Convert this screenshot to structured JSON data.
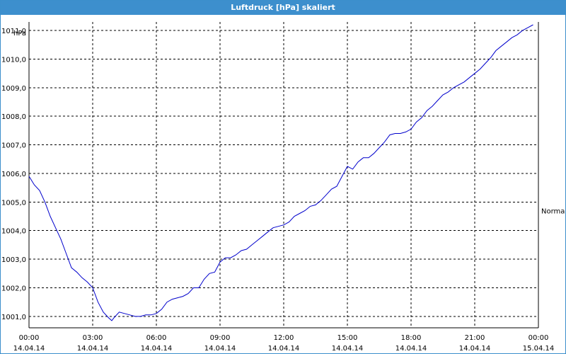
{
  "window": {
    "title": "Luftdruck [hPa] skaliert"
  },
  "colors": {
    "line": "#0000cc",
    "grid": "#000000",
    "titlebar": "#3d8fcd"
  },
  "chart_data": {
    "type": "line",
    "title": "Luftdruck [hPa] skaliert",
    "ylabel": "hPa",
    "xlabel": "",
    "ylim": [
      1000.6,
      1011.3
    ],
    "xlim": [
      0,
      24
    ],
    "grid": true,
    "yticks": [
      {
        "value": 1001,
        "label": "1001,0"
      },
      {
        "value": 1002,
        "label": "1002,0"
      },
      {
        "value": 1003,
        "label": "1003,0"
      },
      {
        "value": 1004,
        "label": "1004,0"
      },
      {
        "value": 1005,
        "label": "1005,0"
      },
      {
        "value": 1006,
        "label": "1006,0"
      },
      {
        "value": 1007,
        "label": "1007,0"
      },
      {
        "value": 1008,
        "label": "1008,0"
      },
      {
        "value": 1009,
        "label": "1009,0"
      },
      {
        "value": 1010,
        "label": "1010,0"
      },
      {
        "value": 1011,
        "label": "1011,0"
      }
    ],
    "xticks": [
      {
        "value": 0,
        "time": "00:00",
        "date": "14.04.14"
      },
      {
        "value": 3,
        "time": "03:00",
        "date": "14.04.14"
      },
      {
        "value": 6,
        "time": "06:00",
        "date": "14.04.14"
      },
      {
        "value": 9,
        "time": "09:00",
        "date": "14.04.14"
      },
      {
        "value": 12,
        "time": "12:00",
        "date": "14.04.14"
      },
      {
        "value": 15,
        "time": "15:00",
        "date": "14.04.14"
      },
      {
        "value": 18,
        "time": "18:00",
        "date": "14.04.14"
      },
      {
        "value": 21,
        "time": "21:00",
        "date": "14.04.14"
      },
      {
        "value": 24,
        "time": "00:00",
        "date": "15.04.14"
      }
    ],
    "annotations": [
      {
        "text": "Normal",
        "y": 1004.7
      }
    ],
    "series": [
      {
        "points": [
          [
            0.0,
            1005.9
          ],
          [
            0.25,
            1005.6
          ],
          [
            0.5,
            1005.4
          ],
          [
            0.75,
            1005.0
          ],
          [
            1.0,
            1004.5
          ],
          [
            1.25,
            1004.1
          ],
          [
            1.5,
            1003.7
          ],
          [
            1.75,
            1003.2
          ],
          [
            2.0,
            1002.7
          ],
          [
            2.25,
            1002.55
          ],
          [
            2.5,
            1002.35
          ],
          [
            2.75,
            1002.2
          ],
          [
            3.0,
            1002.0
          ],
          [
            3.25,
            1001.5
          ],
          [
            3.5,
            1001.15
          ],
          [
            3.75,
            1000.95
          ],
          [
            3.9,
            1000.85
          ],
          [
            4.0,
            1000.95
          ],
          [
            4.25,
            1001.15
          ],
          [
            4.5,
            1001.1
          ],
          [
            4.75,
            1001.05
          ],
          [
            5.0,
            1001.0
          ],
          [
            5.25,
            1001.0
          ],
          [
            5.5,
            1001.05
          ],
          [
            5.75,
            1001.05
          ],
          [
            6.0,
            1001.1
          ],
          [
            6.25,
            1001.25
          ],
          [
            6.5,
            1001.5
          ],
          [
            6.75,
            1001.6
          ],
          [
            7.0,
            1001.65
          ],
          [
            7.25,
            1001.7
          ],
          [
            7.5,
            1001.8
          ],
          [
            7.75,
            1002.0
          ],
          [
            8.0,
            1002.0
          ],
          [
            8.25,
            1002.3
          ],
          [
            8.5,
            1002.5
          ],
          [
            8.75,
            1002.55
          ],
          [
            9.0,
            1002.9
          ],
          [
            9.25,
            1003.05
          ],
          [
            9.5,
            1003.05
          ],
          [
            9.75,
            1003.15
          ],
          [
            10.0,
            1003.3
          ],
          [
            10.25,
            1003.35
          ],
          [
            10.5,
            1003.5
          ],
          [
            10.75,
            1003.65
          ],
          [
            11.0,
            1003.8
          ],
          [
            11.25,
            1003.95
          ],
          [
            11.5,
            1004.1
          ],
          [
            11.75,
            1004.15
          ],
          [
            12.0,
            1004.2
          ],
          [
            12.25,
            1004.3
          ],
          [
            12.5,
            1004.5
          ],
          [
            12.75,
            1004.6
          ],
          [
            13.0,
            1004.7
          ],
          [
            13.25,
            1004.85
          ],
          [
            13.5,
            1004.9
          ],
          [
            13.75,
            1005.05
          ],
          [
            14.0,
            1005.25
          ],
          [
            14.25,
            1005.45
          ],
          [
            14.5,
            1005.55
          ],
          [
            14.75,
            1005.9
          ],
          [
            15.0,
            1006.25
          ],
          [
            15.25,
            1006.15
          ],
          [
            15.5,
            1006.4
          ],
          [
            15.75,
            1006.55
          ],
          [
            16.0,
            1006.55
          ],
          [
            16.25,
            1006.7
          ],
          [
            16.5,
            1006.9
          ],
          [
            16.75,
            1007.1
          ],
          [
            17.0,
            1007.35
          ],
          [
            17.25,
            1007.4
          ],
          [
            17.5,
            1007.4
          ],
          [
            17.75,
            1007.45
          ],
          [
            18.0,
            1007.55
          ],
          [
            18.25,
            1007.8
          ],
          [
            18.5,
            1007.95
          ],
          [
            18.75,
            1008.2
          ],
          [
            19.0,
            1008.35
          ],
          [
            19.25,
            1008.55
          ],
          [
            19.5,
            1008.75
          ],
          [
            19.75,
            1008.85
          ],
          [
            20.0,
            1009.0
          ],
          [
            20.25,
            1009.1
          ],
          [
            20.5,
            1009.2
          ],
          [
            20.75,
            1009.35
          ],
          [
            21.0,
            1009.5
          ],
          [
            21.25,
            1009.65
          ],
          [
            21.5,
            1009.85
          ],
          [
            21.75,
            1010.05
          ],
          [
            22.0,
            1010.3
          ],
          [
            22.25,
            1010.45
          ],
          [
            22.5,
            1010.6
          ],
          [
            22.75,
            1010.75
          ],
          [
            23.0,
            1010.85
          ],
          [
            23.25,
            1011.0
          ],
          [
            23.5,
            1011.1
          ],
          [
            23.75,
            1011.2
          ]
        ]
      }
    ]
  }
}
